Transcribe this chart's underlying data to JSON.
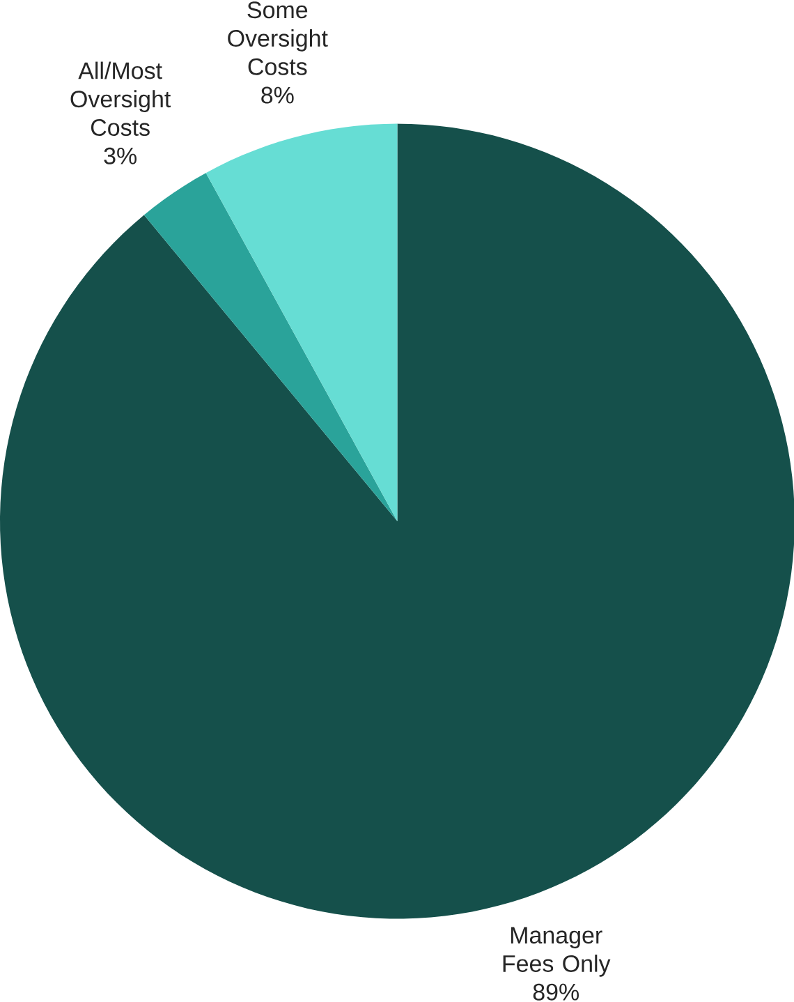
{
  "chart_data": {
    "type": "pie",
    "categories": [
      "Manager Fees Only",
      "All/Most Oversight Costs",
      "Some Oversight Costs"
    ],
    "values": [
      89,
      3,
      8
    ],
    "value_labels": [
      "89%",
      "3%",
      "8%"
    ],
    "colors": [
      "#15504b",
      "#2aa39a",
      "#66ddd4"
    ]
  }
}
